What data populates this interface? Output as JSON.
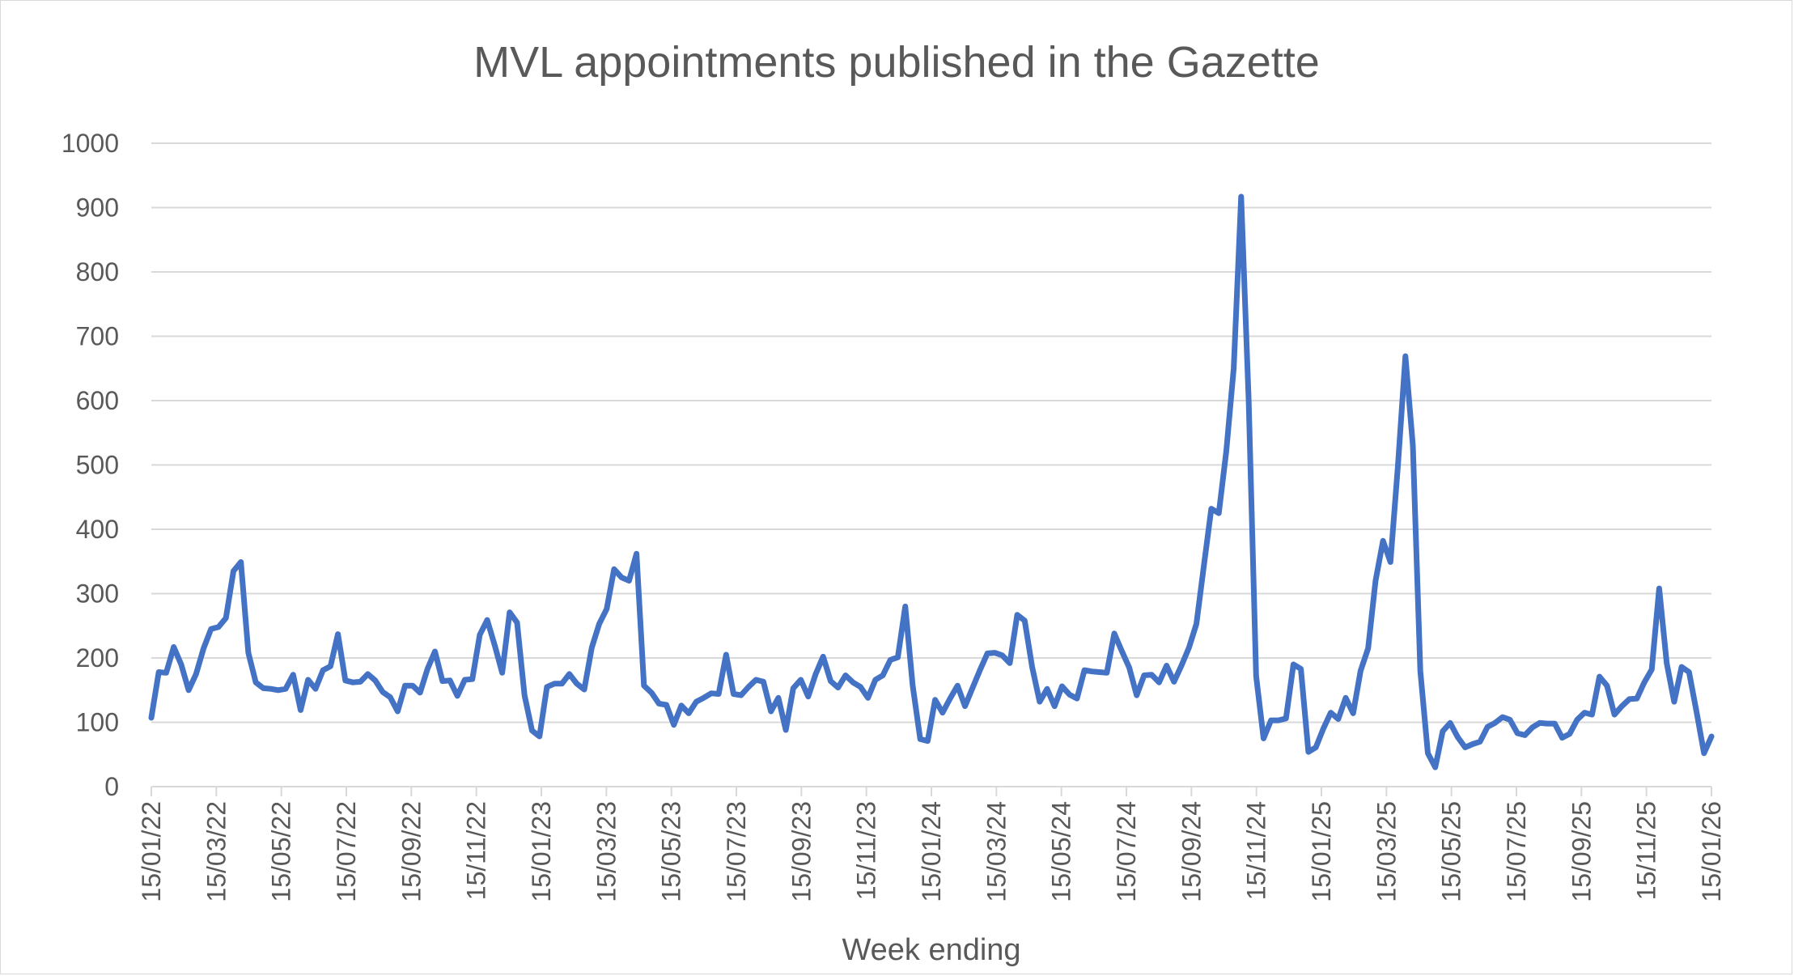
{
  "chart_data": {
    "type": "line",
    "title": "MVL appointments published in the Gazette",
    "xlabel": "Week ending",
    "ylabel": "",
    "ylim": [
      0,
      1000
    ],
    "yticks": [
      0,
      100,
      200,
      300,
      400,
      500,
      600,
      700,
      800,
      900,
      1000
    ],
    "xticks": [
      "15/01/22",
      "15/03/22",
      "15/05/22",
      "15/07/22",
      "15/09/22",
      "15/11/22",
      "15/01/23",
      "15/03/23",
      "15/05/23",
      "15/07/23",
      "15/09/23",
      "15/11/23",
      "15/01/24",
      "15/03/24",
      "15/05/24",
      "15/07/24",
      "15/09/24",
      "15/11/24",
      "15/01/25",
      "15/03/25",
      "15/05/25",
      "15/07/25",
      "15/09/25",
      "15/11/25",
      "15/01/26"
    ],
    "grid": true,
    "legend": "none",
    "line_color": "#4472c4",
    "series": [
      {
        "values": [
          107,
          178,
          177,
          217,
          190,
          150,
          175,
          215,
          245,
          248,
          262,
          335,
          349,
          208,
          162,
          153,
          152,
          150,
          152,
          174,
          119,
          166,
          152,
          181,
          187,
          237,
          165,
          162,
          163,
          175,
          165,
          147,
          139,
          117,
          157,
          157,
          146,
          183,
          210,
          164,
          165,
          141,
          166,
          167,
          236,
          259,
          220,
          177,
          271,
          255,
          142,
          87,
          78,
          155,
          160,
          160,
          175,
          160,
          151,
          216,
          253,
          276,
          338,
          325,
          320,
          362,
          157,
          146,
          129,
          127,
          96,
          126,
          114,
          132,
          138,
          145,
          144,
          205,
          144,
          142,
          155,
          166,
          163,
          117,
          138,
          88,
          153,
          166,
          140,
          175,
          202,
          164,
          154,
          173,
          162,
          155,
          138,
          166,
          173,
          197,
          201,
          280,
          157,
          74,
          71,
          135,
          115,
          137,
          157,
          125,
          153,
          181,
          207,
          208,
          204,
          192,
          267,
          258,
          186,
          132,
          152,
          125,
          156,
          143,
          137,
          181,
          179,
          178,
          177,
          238,
          211,
          185,
          142,
          173,
          174,
          162,
          188,
          163,
          188,
          216,
          253,
          343,
          432,
          425,
          521,
          650,
          917,
          600,
          172,
          75,
          103,
          103,
          106,
          190,
          183,
          54,
          61,
          90,
          115,
          105,
          138,
          114,
          180,
          215,
          320,
          382,
          349,
          500,
          669,
          530,
          180,
          52,
          30,
          86,
          99,
          77,
          61,
          66,
          70,
          93,
          99,
          108,
          104,
          83,
          80,
          92,
          99,
          98,
          98,
          76,
          82,
          104,
          115,
          112,
          171,
          157,
          112,
          125,
          136,
          137,
          162,
          182,
          308,
          192,
          132,
          186,
          178,
          116,
          52,
          78
        ]
      }
    ]
  }
}
